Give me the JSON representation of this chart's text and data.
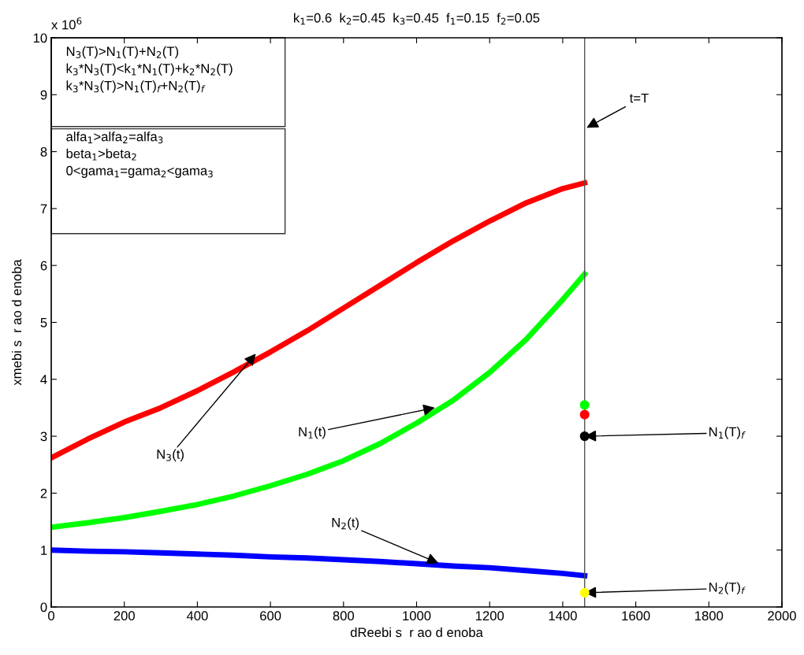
{
  "chart_data": {
    "type": "line",
    "title": "k$_{1}$=0.6  k$_{2}$=0.45  k$_{3}$=0.45  f$_{1}$=0.15  f$_{2}$=0.05",
    "xlabel": "dReebi s  r ao d enoba",
    "ylabel": "xmebi s  r ao d enoba",
    "x": [
      0,
      100,
      200,
      300,
      400,
      500,
      600,
      700,
      800,
      900,
      1000,
      1100,
      1200,
      1300,
      1400,
      1460
    ],
    "series": [
      {
        "color": "#ff0000",
        "values": [
          2.62,
          2.95,
          3.25,
          3.5,
          3.8,
          4.13,
          4.48,
          4.85,
          5.25,
          5.65,
          6.05,
          6.43,
          6.78,
          7.1,
          7.35,
          7.45
        ]
      },
      {
        "color": "#00ff00",
        "values": [
          1.4,
          1.48,
          1.57,
          1.68,
          1.8,
          1.95,
          2.13,
          2.33,
          2.57,
          2.87,
          3.23,
          3.63,
          4.12,
          4.7,
          5.4,
          5.85
        ]
      },
      {
        "color": "#0000ff",
        "values": [
          1.0,
          0.98,
          0.97,
          0.95,
          0.93,
          0.91,
          0.88,
          0.86,
          0.83,
          0.8,
          0.76,
          0.72,
          0.69,
          0.64,
          0.59,
          0.55
        ]
      },
      {
        "type": "scatter",
        "marker": "circle",
        "color": "#00ff00",
        "values": [
          null,
          null,
          null,
          null,
          null,
          null,
          null,
          null,
          null,
          null,
          null,
          null,
          null,
          null,
          null,
          3.55
        ]
      },
      {
        "type": "scatter",
        "marker": "circle",
        "color": "#ff0000",
        "values": [
          null,
          null,
          null,
          null,
          null,
          null,
          null,
          null,
          null,
          null,
          null,
          null,
          null,
          null,
          null,
          3.38
        ]
      },
      {
        "type": "scatter",
        "marker": "circle",
        "color": "#000000",
        "values": [
          null,
          null,
          null,
          null,
          null,
          null,
          null,
          null,
          null,
          null,
          null,
          null,
          null,
          null,
          null,
          3.0
        ]
      },
      {
        "type": "scatter",
        "marker": "circle",
        "color": "#ffff00",
        "values": [
          null,
          null,
          null,
          null,
          null,
          null,
          null,
          null,
          null,
          null,
          null,
          null,
          null,
          null,
          null,
          0.25
        ]
      }
    ],
    "xlim": [
      0,
      2000
    ],
    "xticks": [
      0,
      200,
      400,
      600,
      800,
      1000,
      1200,
      1400,
      1600,
      1800,
      2000
    ],
    "ylim": [
      0,
      10
    ],
    "yticks": [
      0,
      1,
      2,
      3,
      4,
      5,
      6,
      7,
      8,
      9,
      10
    ],
    "grid": false,
    "ref_lines": [
      {
        "axis": "x",
        "value": 1460,
        "label": "t=T",
        "color": "#555555"
      }
    ],
    "annotations": [
      "x 10$^{6}$",
      "N$_{3}$(T)>N$_{1}$(T)+N$_{2}$(T)\nk$_{3}$*N$_{3}$(T)<k$_{1}$*N$_{1}$(T)+k$_{2}$*N$_{2}$(T)\nk$_{3}$*N$_{3}$(T)>N$_{1}$(T)$_{f}$+N$_{2}$(T)$_{f}$",
      "alfa$_{1}$>alfa$_{2}$=alfa$_{3}$\nbeta$_{1}$>beta$_{2}$\n0<gama$_{1}$=gama$_{2}$<gama$_{3}$",
      {
        "text": "N$_{3}$(t)",
        "x": 560,
        "y": 4.45
      },
      {
        "text": "N$_{1}$(t)",
        "x": 1050,
        "y": 3.5
      },
      {
        "text": "N$_{2}$(t)",
        "x": 1060,
        "y": 0.77
      },
      {
        "text": "N$_{1}$(T)$_{f}$",
        "x": 1460,
        "y": 3.0
      },
      {
        "text": "N$_{2}$(T)$_{f}$",
        "x": 1460,
        "y": 0.25
      }
    ]
  }
}
